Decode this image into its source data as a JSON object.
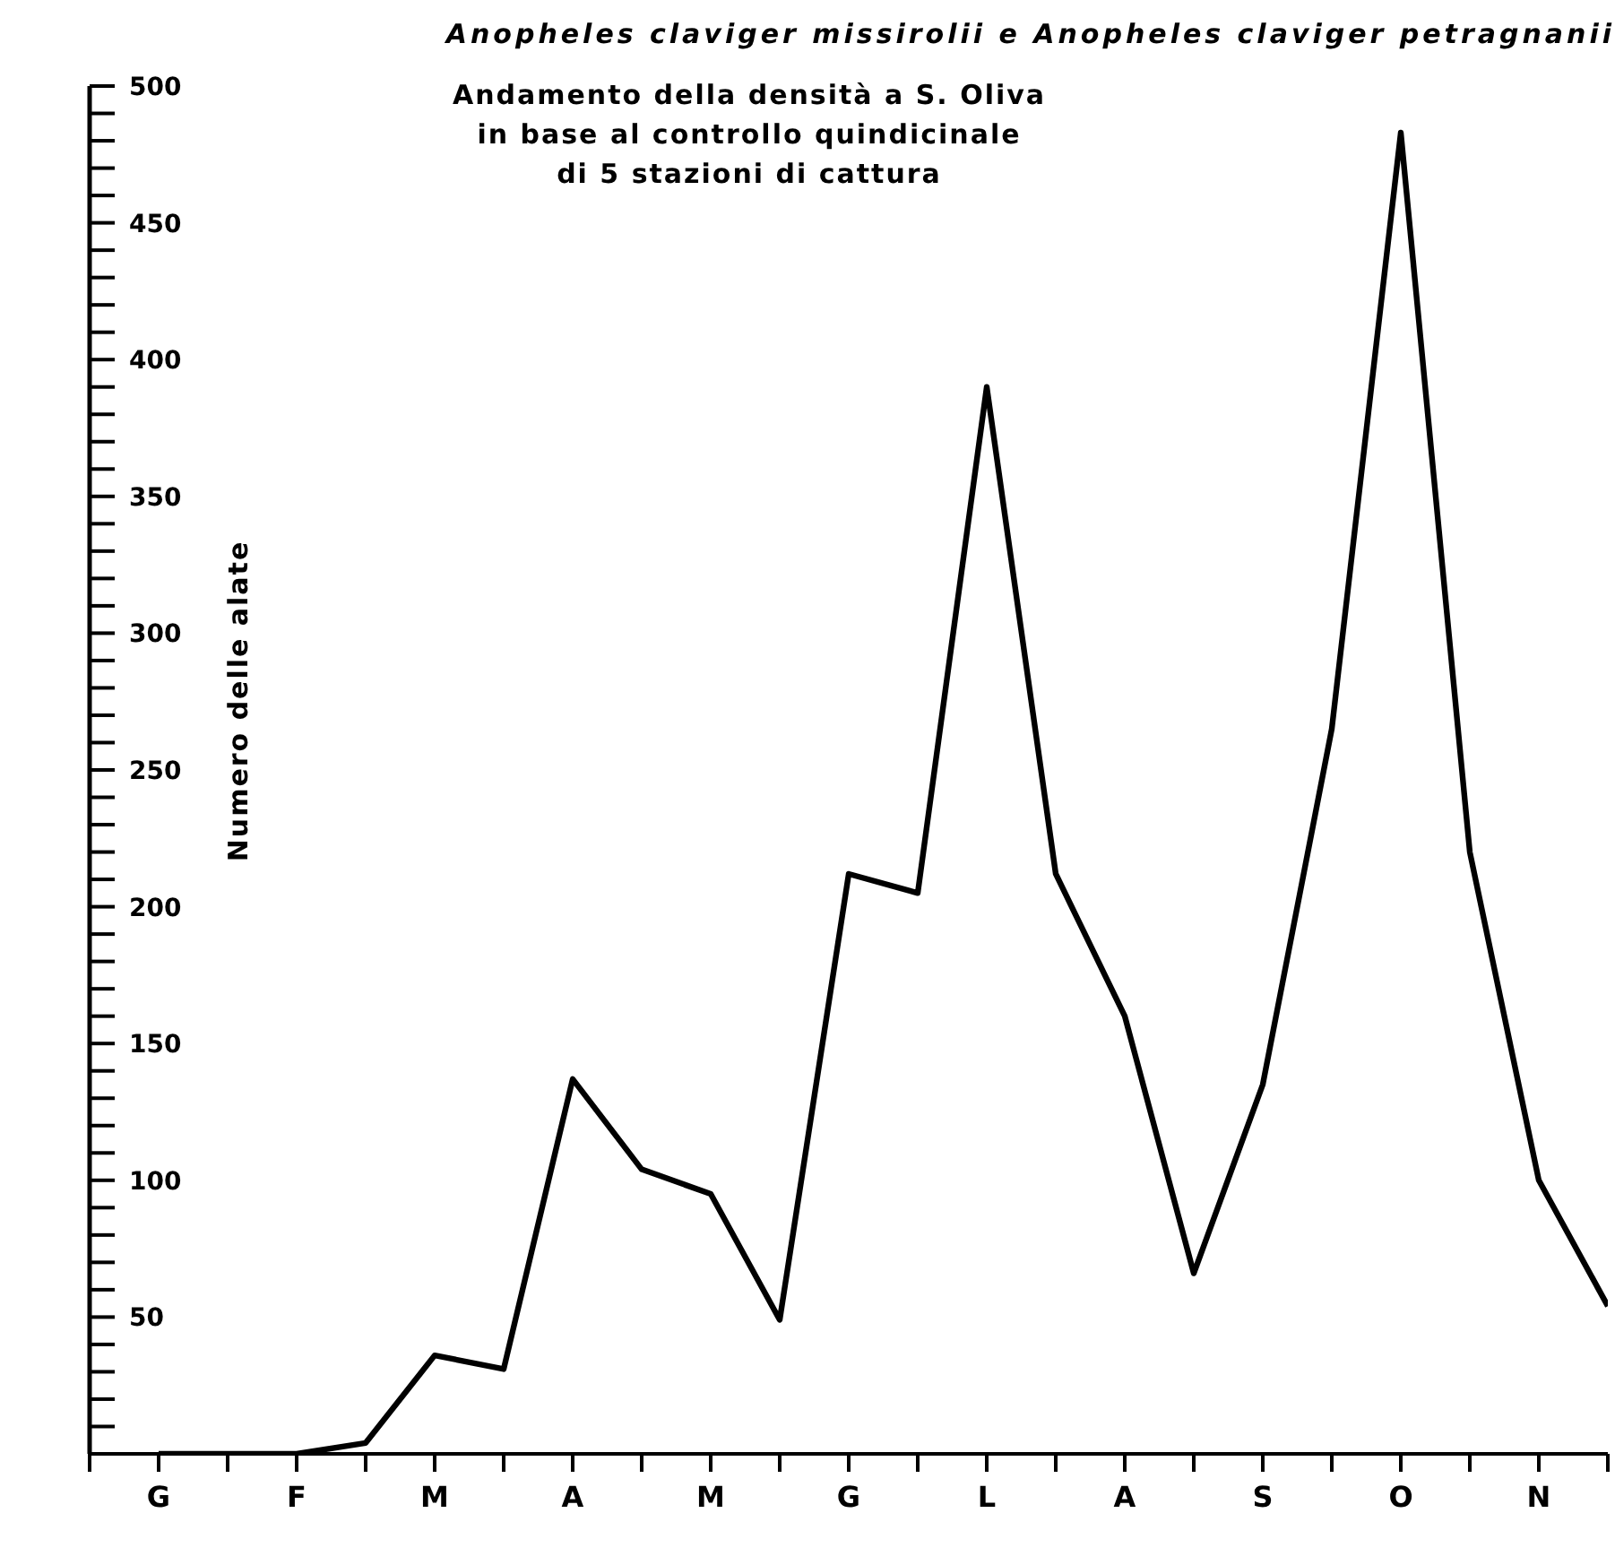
{
  "chart_data": {
    "type": "line",
    "title": "Anopheles claviger missirolii e Anopheles claviger petragnanii",
    "subtitle": "Andamento della densità a S. Oliva\nin base al controllo quindicinale\ndi 5 stazioni di cattura",
    "ylabel": "Numero delle alate",
    "categories": [
      "G",
      null,
      "F",
      null,
      "M",
      null,
      "A",
      null,
      "M",
      null,
      "G",
      null,
      "L",
      null,
      "A",
      null,
      "S",
      null,
      "O",
      null,
      "N",
      null
    ],
    "series": [
      {
        "color": "#000000",
        "values": [
          0,
          0,
          0,
          4,
          36,
          31,
          137,
          104,
          95,
          49,
          212,
          205,
          390,
          212,
          160,
          66,
          135,
          265,
          483,
          220,
          100,
          54
        ]
      }
    ],
    "ylim": [
      0,
      500
    ],
    "yticks": [
      {
        "value": 0,
        "label": null
      },
      {
        "value": 10,
        "label": null
      },
      {
        "value": 20,
        "label": null
      },
      {
        "value": 30,
        "label": null
      },
      {
        "value": 40,
        "label": null
      },
      50,
      {
        "value": 60,
        "label": null
      },
      {
        "value": 70,
        "label": null
      },
      {
        "value": 80,
        "label": null
      },
      {
        "value": 90,
        "label": null
      },
      100,
      {
        "value": 110,
        "label": null
      },
      {
        "value": 120,
        "label": null
      },
      {
        "value": 130,
        "label": null
      },
      {
        "value": 140,
        "label": null
      },
      150,
      {
        "value": 160,
        "label": null
      },
      {
        "value": 170,
        "label": null
      },
      {
        "value": 180,
        "label": null
      },
      {
        "value": 190,
        "label": null
      },
      200,
      {
        "value": 210,
        "label": null
      },
      {
        "value": 220,
        "label": null
      },
      {
        "value": 230,
        "label": null
      },
      {
        "value": 240,
        "label": null
      },
      250,
      {
        "value": 260,
        "label": null
      },
      {
        "value": 270,
        "label": null
      },
      {
        "value": 280,
        "label": null
      },
      {
        "value": 290,
        "label": null
      },
      300,
      {
        "value": 310,
        "label": null
      },
      {
        "value": 320,
        "label": null
      },
      {
        "value": 330,
        "label": null
      },
      {
        "value": 340,
        "label": null
      },
      350,
      {
        "value": 360,
        "label": null
      },
      {
        "value": 370,
        "label": null
      },
      {
        "value": 380,
        "label": null
      },
      {
        "value": 390,
        "label": null
      },
      400,
      {
        "value": 410,
        "label": null
      },
      {
        "value": 420,
        "label": null
      },
      {
        "value": 430,
        "label": null
      },
      {
        "value": 440,
        "label": null
      },
      450,
      {
        "value": 460,
        "label": null
      },
      {
        "value": 470,
        "label": null
      },
      {
        "value": 480,
        "label": null
      },
      {
        "value": 490,
        "label": null
      },
      500
    ],
    "marker": "none",
    "line_style": "solid",
    "grid": false
  }
}
